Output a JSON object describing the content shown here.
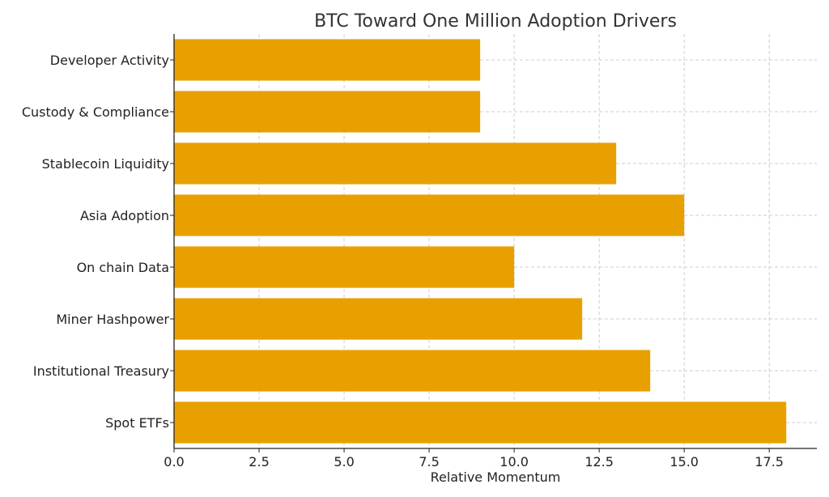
{
  "chart_data": {
    "type": "bar",
    "orientation": "horizontal",
    "title": "BTC Toward One Million  Adoption Drivers",
    "xlabel": "Relative Momentum",
    "ylabel": "",
    "categories": [
      "Spot ETFs",
      "Institutional Treasury",
      "Miner Hashpower",
      "On chain Data",
      "Asia Adoption",
      "Stablecoin Liquidity",
      "Custody & Compliance",
      "Developer Activity"
    ],
    "values": [
      18,
      14,
      12,
      10,
      15,
      13,
      9,
      9
    ],
    "xlim": [
      0,
      18.9
    ],
    "xticks": [
      "0.0",
      "2.5",
      "5.0",
      "7.5",
      "10.0",
      "12.5",
      "15.0",
      "17.5"
    ],
    "grid": true,
    "bar_color": "#E8A000"
  }
}
